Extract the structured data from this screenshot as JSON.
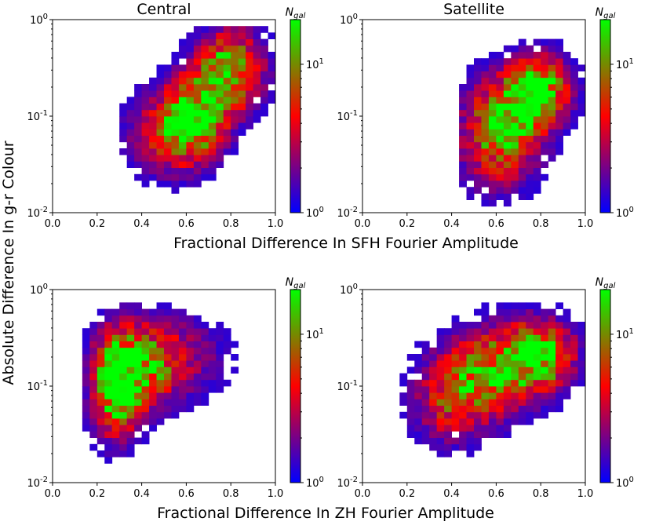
{
  "figure": {
    "xlabel_top": "Fractional Difference In SFH Fourier Amplitude",
    "xlabel_bottom": "Fractional Difference In ZH Fourier Amplitude",
    "ylabel": "Absolute Difference In g-r Colour",
    "colormap": [
      "#0000ff",
      "#ff0000",
      "#00ff00"
    ]
  },
  "chart_data": [
    {
      "type": "heatmap",
      "title": "Central",
      "xlabel": "Fractional Difference In SFH Fourier Amplitude",
      "ylabel": "Absolute Difference In g-r Colour",
      "xlim": [
        0,
        1
      ],
      "ylim": [
        0.01,
        1
      ],
      "yscale": "log",
      "xticks": [
        "0.0",
        "0.2",
        "0.4",
        "0.6",
        "0.8",
        "1.0"
      ],
      "yticks": [
        "10^-2",
        "10^-1",
        "10^0"
      ],
      "colorbar": {
        "label": "N_gal",
        "range": [
          1,
          20
        ],
        "scale": "log",
        "ticks": [
          "10^0",
          "10^1"
        ]
      },
      "bins": 30,
      "density_peaks": [
        {
          "x": 0.8,
          "y": 0.3,
          "sx": 0.1,
          "sy": 0.28,
          "w": 1.0
        },
        {
          "x": 0.65,
          "y": 0.1,
          "sx": 0.09,
          "sy": 0.28,
          "w": 0.9
        },
        {
          "x": 0.52,
          "y": 0.07,
          "sx": 0.12,
          "sy": 0.3,
          "w": 0.6
        }
      ],
      "support_x": [
        0.3,
        1.0
      ],
      "support_logy": [
        -2,
        -0.1
      ]
    },
    {
      "type": "heatmap",
      "title": "Satellite",
      "xlabel": "Fractional Difference In SFH Fourier Amplitude",
      "ylabel": "",
      "xlim": [
        0,
        1
      ],
      "ylim": [
        0.01,
        1
      ],
      "yscale": "log",
      "xticks": [
        "0.0",
        "0.2",
        "0.4",
        "0.6",
        "0.8",
        "1.0"
      ],
      "yticks": [
        "10^-2",
        "10^-1",
        "10^0"
      ],
      "colorbar": {
        "label": "N_gal",
        "range": [
          1,
          20
        ],
        "scale": "log",
        "ticks": [
          "10^0",
          "10^1"
        ]
      },
      "bins": 30,
      "density_peaks": [
        {
          "x": 0.8,
          "y": 0.2,
          "sx": 0.09,
          "sy": 0.22,
          "w": 1.0
        },
        {
          "x": 0.65,
          "y": 0.1,
          "sx": 0.12,
          "sy": 0.3,
          "w": 0.85
        },
        {
          "x": 0.6,
          "y": 0.04,
          "sx": 0.12,
          "sy": 0.3,
          "w": 0.4
        }
      ],
      "support_x": [
        0.45,
        1.0
      ],
      "support_logy": [
        -2,
        -0.05
      ]
    },
    {
      "type": "heatmap",
      "title": "",
      "xlabel": "Fractional Difference In ZH Fourier Amplitude",
      "ylabel": "Absolute Difference In g-r Colour",
      "xlim": [
        0,
        1
      ],
      "ylim": [
        0.01,
        1
      ],
      "yscale": "log",
      "xticks": [
        "0.0",
        "0.2",
        "0.4",
        "0.6",
        "0.8",
        "1.0"
      ],
      "yticks": [
        "10^-2",
        "10^-1",
        "10^0"
      ],
      "colorbar": {
        "label": "N_gal",
        "range": [
          1,
          20
        ],
        "scale": "log",
        "ticks": [
          "10^0",
          "10^1"
        ]
      },
      "bins": 30,
      "density_peaks": [
        {
          "x": 0.28,
          "y": 0.1,
          "sx": 0.07,
          "sy": 0.35,
          "w": 1.0
        },
        {
          "x": 0.38,
          "y": 0.15,
          "sx": 0.1,
          "sy": 0.3,
          "w": 0.75
        },
        {
          "x": 0.55,
          "y": 0.2,
          "sx": 0.15,
          "sy": 0.3,
          "w": 0.4
        }
      ],
      "support_x": [
        0.12,
        1.0
      ],
      "support_logy": [
        -2,
        -0.15
      ]
    },
    {
      "type": "heatmap",
      "title": "",
      "xlabel": "Fractional Difference In ZH Fourier Amplitude",
      "ylabel": "",
      "xlim": [
        0,
        1
      ],
      "ylim": [
        0.01,
        1
      ],
      "yscale": "log",
      "xticks": [
        "0.0",
        "0.2",
        "0.4",
        "0.6",
        "0.8",
        "1.0"
      ],
      "yticks": [
        "10^-2",
        "10^-1",
        "10^0"
      ],
      "colorbar": {
        "label": "N_gal",
        "range": [
          1,
          20
        ],
        "scale": "log",
        "ticks": [
          "10^0",
          "10^1"
        ]
      },
      "bins": 30,
      "density_peaks": [
        {
          "x": 0.8,
          "y": 0.22,
          "sx": 0.1,
          "sy": 0.22,
          "w": 1.0
        },
        {
          "x": 0.6,
          "y": 0.15,
          "sx": 0.15,
          "sy": 0.3,
          "w": 0.8
        },
        {
          "x": 0.4,
          "y": 0.07,
          "sx": 0.12,
          "sy": 0.3,
          "w": 0.55
        }
      ],
      "support_x": [
        0.15,
        1.0
      ],
      "support_logy": [
        -2,
        0
      ]
    }
  ]
}
